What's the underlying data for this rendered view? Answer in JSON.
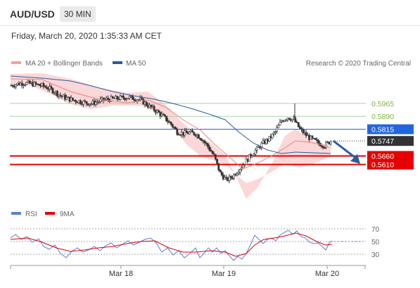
{
  "header": {
    "symbol": "AUD/USD",
    "timeframe": "30 MIN"
  },
  "timestamp": "Friday, March 20, 2020 1:35:33 AM CET",
  "chart_data": {
    "type": "candlestick",
    "legend": [
      {
        "name": "MA 20 + Bollinger Bands",
        "color": "#f08080"
      },
      {
        "name": "MA 50",
        "color": "#2b5d9e"
      }
    ],
    "credit": "Research © 2020 Trading Central",
    "levels": [
      {
        "value": "0.5965",
        "style": "resistance",
        "color": "#7cb342"
      },
      {
        "value": "0.5890",
        "style": "resistance",
        "color": "#7cb342"
      },
      {
        "value": "0.5815",
        "style": "pivot",
        "color": "#2266dd"
      },
      {
        "value": "0.5660",
        "style": "support",
        "color": "#e60000"
      },
      {
        "value": "0.5610",
        "style": "support",
        "color": "#e60000"
      }
    ],
    "last_price": "0.5747",
    "price_range": [
      0.54,
      0.6165
    ],
    "forecast_arrow": {
      "from": 0.5747,
      "to": 0.5622,
      "direction": "down"
    },
    "x_ticks": [
      "Mar 18",
      "Mar 19",
      "Mar 20"
    ],
    "rsi": {
      "legend": [
        {
          "name": "RSI",
          "color": "#5a7fd8"
        },
        {
          "name": "9MA",
          "color": "#e00000"
        }
      ],
      "levels": [
        "70",
        "50",
        "30"
      ]
    },
    "close_path": [
      0.607,
      0.6078,
      0.6084,
      0.608,
      0.6075,
      0.6068,
      0.6055,
      0.6035,
      0.601,
      0.5995,
      0.5985,
      0.5978,
      0.597,
      0.5965,
      0.5975,
      0.5985,
      0.599,
      0.5993,
      0.5998,
      0.6,
      0.5995,
      0.5985,
      0.596,
      0.5935,
      0.591,
      0.588,
      0.5845,
      0.58,
      0.579,
      0.5795,
      0.579,
      0.576,
      0.5715,
      0.566,
      0.556,
      0.552,
      0.554,
      0.558,
      0.562,
      0.5665,
      0.57,
      0.5735,
      0.576,
      0.58,
      0.5865,
      0.5885,
      0.587,
      0.5815,
      0.578,
      0.5755,
      0.5735,
      0.572,
      0.5747
    ]
  }
}
